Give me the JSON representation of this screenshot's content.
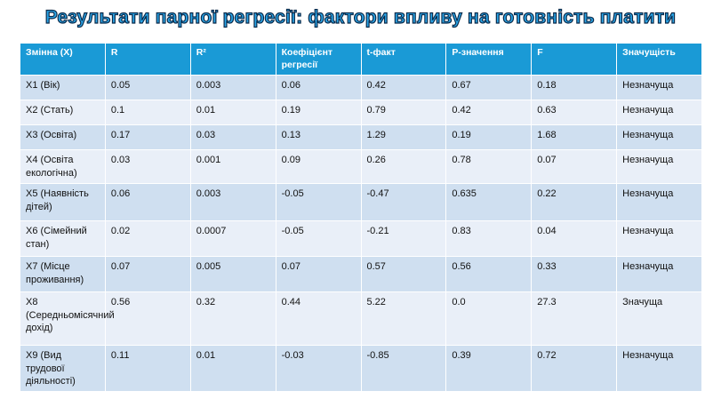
{
  "title": "Результати парної регресії: фактори впливу на готовність платити",
  "table": {
    "header": [
      "Змінна (X)",
      "R",
      "R²",
      "Коефіцієнт регресії",
      "t-факт",
      "P-значення",
      "F",
      "Значущість"
    ],
    "rows": [
      [
        "X1 (Вік)",
        "0.05",
        "0.003",
        "0.06",
        "0.42",
        "0.67",
        "0.18",
        "Незначуща"
      ],
      [
        "X2 (Стать)",
        "0.1",
        "0.01",
        "0.19",
        "0.79",
        "0.42",
        "0.63",
        "Незначуща"
      ],
      [
        "X3 (Освіта)",
        "0.17",
        "0.03",
        "0.13",
        "1.29",
        "0.19",
        "1.68",
        "Незначуща"
      ],
      [
        "X4 (Освіта екологічна)",
        "0.03",
        "0.001",
        "0.09",
        "0.26",
        "0.78",
        "0.07",
        "Незначуща"
      ],
      [
        "X5 (Наявність дітей)",
        "0.06",
        "0.003",
        "-0.05",
        "-0.47",
        "0.635",
        "0.22",
        "Незначуща"
      ],
      [
        "X6 (Сімейний стан)",
        "0.02",
        "0.0007",
        "-0.05",
        "-0.21",
        "0.83",
        "0.04",
        "Незначуща"
      ],
      [
        "X7 (Місце проживання)",
        "0.07",
        "0.005",
        "0.07",
        "0.57",
        "0.56",
        "0.33",
        "Незначуща"
      ],
      [
        "X8 (Середньомісячний дохід)",
        "0.56",
        "0.32",
        "0.44",
        "5.22",
        "0.0",
        "27.3",
        "Значуща"
      ],
      [
        "X9 (Вид трудової діяльності)",
        "0.11",
        "0.01",
        "-0.03",
        "-0.85",
        "0.39",
        "0.72",
        "Незначуща"
      ]
    ]
  }
}
